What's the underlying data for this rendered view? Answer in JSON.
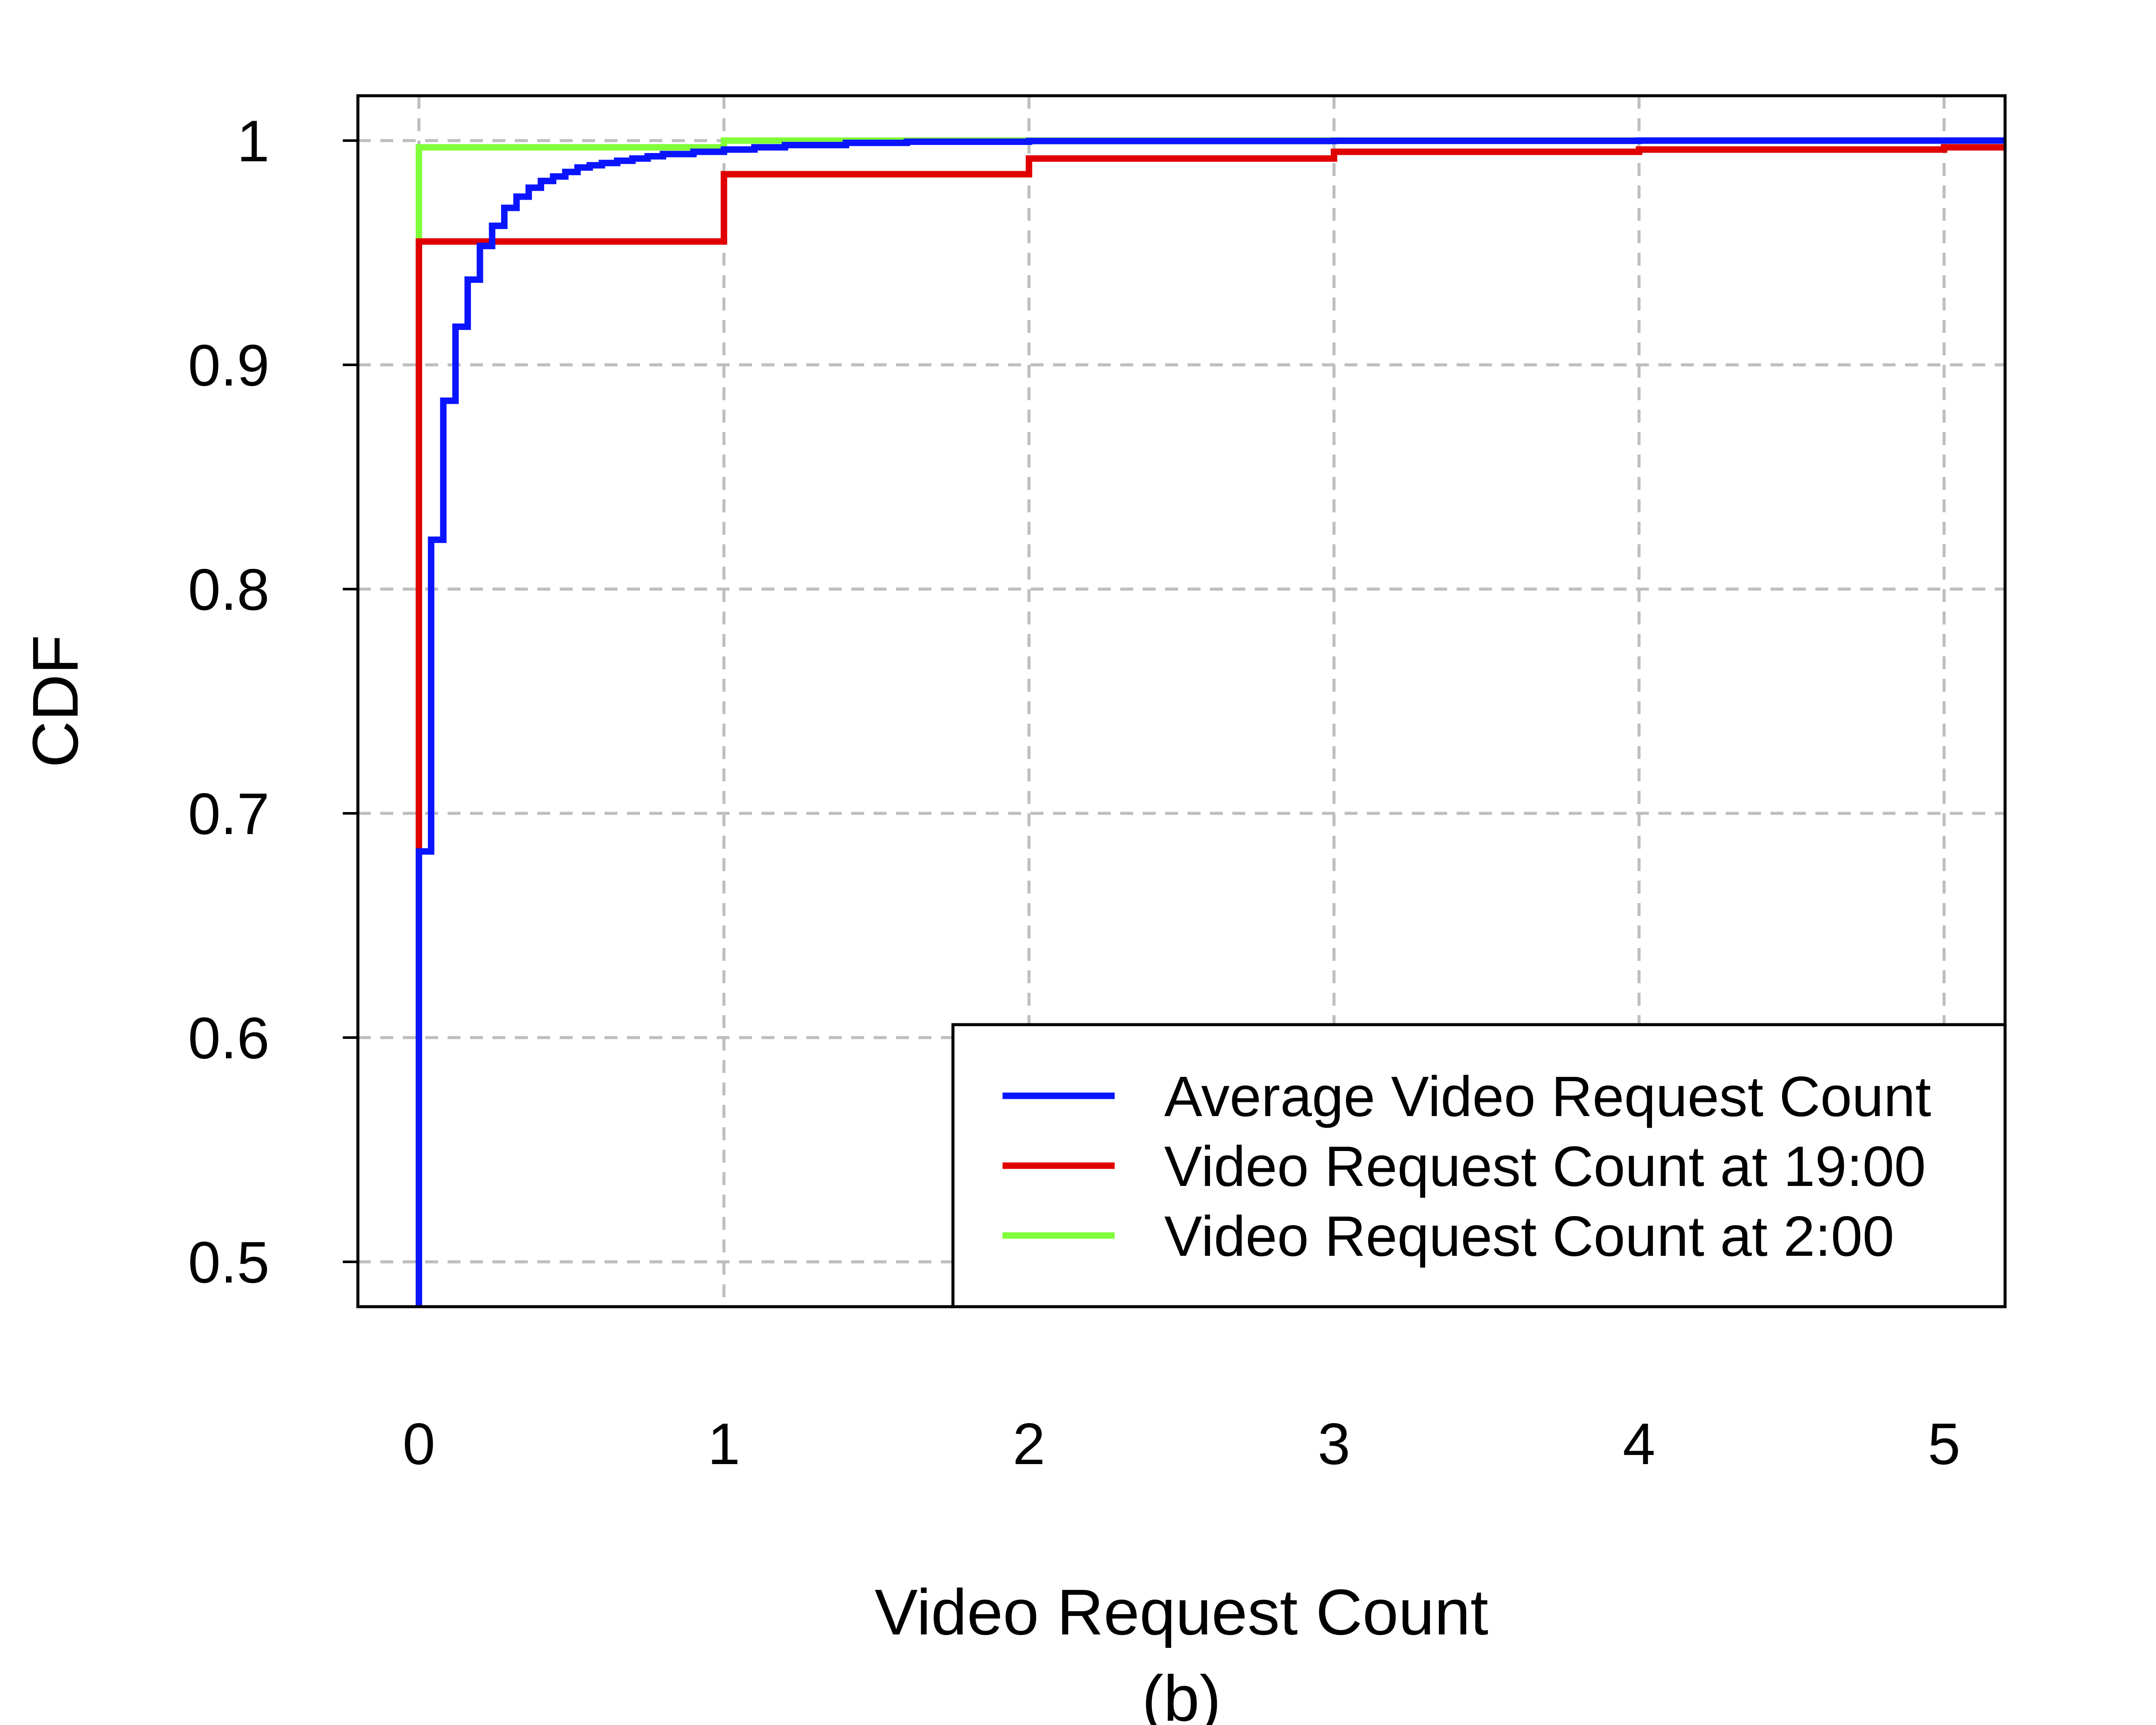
{
  "chart_data": {
    "type": "line",
    "step": true,
    "title": "",
    "xlabel": "Video Request Count",
    "ylabel": "CDF",
    "caption": "(b)",
    "xlim": [
      -0.2,
      5.2
    ],
    "ylim": [
      0.48,
      1.02
    ],
    "xticks": [
      0,
      1,
      2,
      3,
      4,
      5
    ],
    "xtick_labels": [
      "0",
      "1",
      "2",
      "3",
      "4",
      "5"
    ],
    "yticks": [
      0.5,
      0.6,
      0.7,
      0.8,
      0.9,
      1
    ],
    "ytick_labels": [
      "0.5",
      "0.6",
      "0.7",
      "0.8",
      "0.9",
      "1"
    ],
    "grid": true,
    "legend_position": "bottom-right",
    "series": [
      {
        "name": "Average Video Request Count",
        "color": "#0a14ff",
        "x": [
          0,
          0.04,
          0.08,
          0.12,
          0.16,
          0.2,
          0.24,
          0.28,
          0.32,
          0.36,
          0.4,
          0.44,
          0.48,
          0.52,
          0.56,
          0.6,
          0.65,
          0.7,
          0.75,
          0.8,
          0.9,
          1.0,
          1.1,
          1.2,
          1.4,
          1.6,
          2.0,
          3.0,
          4.0,
          5.2
        ],
        "y": [
          0.683,
          0.822,
          0.884,
          0.917,
          0.938,
          0.953,
          0.962,
          0.97,
          0.975,
          0.979,
          0.982,
          0.984,
          0.986,
          0.988,
          0.989,
          0.99,
          0.991,
          0.992,
          0.993,
          0.994,
          0.995,
          0.996,
          0.997,
          0.998,
          0.999,
          0.9995,
          0.9998,
          0.9999,
          1.0,
          1.0
        ]
      },
      {
        "name": "Video Request Count at 19:00",
        "color": "#e00000",
        "x": [
          0,
          1,
          2,
          3,
          4,
          5,
          5.2
        ],
        "y": [
          0.955,
          0.985,
          0.992,
          0.995,
          0.996,
          0.997,
          0.997
        ]
      },
      {
        "name": "Video Request Count at 2:00",
        "color": "#80ff3a",
        "x": [
          0,
          1,
          5.2
        ],
        "y": [
          0.997,
          1.0,
          1.0
        ]
      }
    ]
  }
}
